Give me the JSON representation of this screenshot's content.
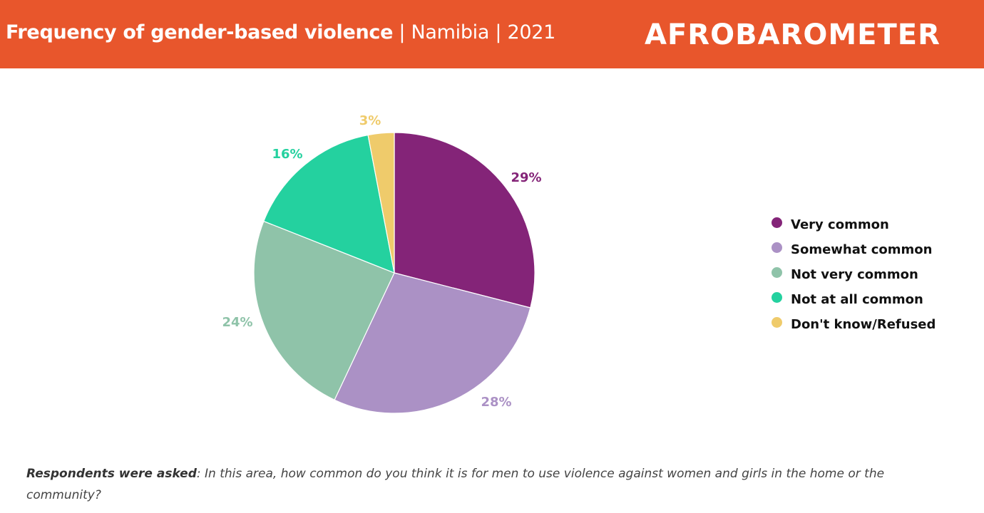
{
  "header": {
    "title_main": "Frequency of gender-based violence",
    "title_sub": " | Namibia | 2021",
    "logo": "AFROBAROMETER",
    "background_color": "#e8562c"
  },
  "chart_data": {
    "type": "pie",
    "title": "Frequency of gender-based violence | Namibia | 2021",
    "categories": [
      "Very common",
      "Somewhat common",
      "Not very common",
      "Not at all common",
      "Don't know/Refused"
    ],
    "values": [
      29,
      28,
      24,
      16,
      3
    ],
    "labels": [
      "29%",
      "28%",
      "24%",
      "16%",
      "3%"
    ],
    "colors": [
      "#842478",
      "#ab91c5",
      "#8fc3a9",
      "#24d19f",
      "#efcb6b"
    ],
    "legend_position": "right",
    "start_angle": "12 o'clock, clockwise"
  },
  "legend": {
    "items": [
      {
        "label": "Very common",
        "color": "#842478"
      },
      {
        "label": "Somewhat common",
        "color": "#ab91c5"
      },
      {
        "label": "Not very common",
        "color": "#8fc3a9"
      },
      {
        "label": "Not at all common",
        "color": "#24d19f"
      },
      {
        "label": "Don't know/Refused",
        "color": "#efcb6b"
      }
    ]
  },
  "footnote": {
    "lead": "Respondents were asked",
    "text": ": In this area, how common do you think it is for men to use violence against women and girls in the home or the community?"
  }
}
